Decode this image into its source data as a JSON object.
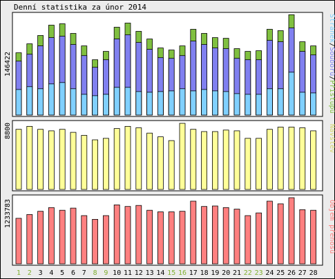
{
  "title": "Denní statistika za únor 2014",
  "colors": {
    "background": "#ececec",
    "panel": "#ffffff",
    "hits": "#80c040",
    "files": "#8080f0",
    "pages": "#80d0ff",
    "visits": "#ffff99",
    "kbytes": "#ff8080",
    "weekend_label": "#80b030",
    "weekday_label": "#000000"
  },
  "chart_data": [
    {
      "type": "bar",
      "panel": "top",
      "ymax_label": "146422",
      "ymax": 146422,
      "legend": [
        "Stránek",
        "Souborů",
        "Přístupů"
      ],
      "x": [
        "1",
        "2",
        "3",
        "4",
        "5",
        "6",
        "7",
        "8",
        "9",
        "10",
        "11",
        "12",
        "13",
        "14",
        "15",
        "16",
        "17",
        "18",
        "19",
        "20",
        "21",
        "22",
        "23",
        "24",
        "25",
        "26",
        "27",
        "28"
      ],
      "weekend_days": [
        "1",
        "2",
        "8",
        "9",
        "15",
        "16",
        "22",
        "23"
      ],
      "series": [
        {
          "name": "Přístupů",
          "values": [
            90000,
            103000,
            115000,
            130000,
            132000,
            118000,
            100000,
            80000,
            92000,
            127000,
            133000,
            121000,
            110000,
            97000,
            94000,
            100000,
            124000,
            118000,
            112000,
            111000,
            96000,
            92000,
            93000,
            124000,
            122000,
            145000,
            106000,
            100000
          ]
        },
        {
          "name": "Souborů",
          "values": [
            78000,
            88000,
            100000,
            112000,
            114000,
            102000,
            86000,
            69000,
            80000,
            110000,
            116000,
            105000,
            95000,
            83000,
            82000,
            86000,
            107000,
            102000,
            97000,
            96000,
            82000,
            80000,
            80000,
            108000,
            106000,
            126000,
            92000,
            87000
          ]
        },
        {
          "name": "Stránek",
          "values": [
            37000,
            41000,
            38000,
            45000,
            47000,
            38000,
            30000,
            28000,
            30000,
            40000,
            40000,
            34000,
            33000,
            34000,
            35000,
            38000,
            35000,
            37000,
            35000,
            34000,
            31000,
            30000,
            30000,
            38000,
            38000,
            62000,
            33000,
            32000
          ]
        }
      ]
    },
    {
      "type": "bar",
      "panel": "middle",
      "ymax_label": "8800",
      "ymax": 8800,
      "legend": [
        "Návštěv"
      ],
      "x": [
        "1",
        "2",
        "3",
        "4",
        "5",
        "6",
        "7",
        "8",
        "9",
        "10",
        "11",
        "12",
        "13",
        "14",
        "15",
        "16",
        "17",
        "18",
        "19",
        "20",
        "21",
        "22",
        "23",
        "24",
        "25",
        "26",
        "27",
        "28"
      ],
      "series": [
        {
          "name": "Návštěv",
          "values": [
            8000,
            8400,
            8000,
            7800,
            8000,
            7600,
            7200,
            6600,
            6800,
            8100,
            8400,
            8200,
            7500,
            7000,
            6500,
            8800,
            8000,
            7700,
            7700,
            7900,
            7800,
            6800,
            6800,
            8000,
            8300,
            8300,
            8200,
            7800
          ]
        }
      ]
    },
    {
      "type": "bar",
      "panel": "bottom",
      "ymax_label": "1233783",
      "ymax": 1233783,
      "legend": [
        "Objem přenosů"
      ],
      "x": [
        "1",
        "2",
        "3",
        "4",
        "5",
        "6",
        "7",
        "8",
        "9",
        "10",
        "11",
        "12",
        "13",
        "14",
        "15",
        "16",
        "17",
        "18",
        "19",
        "20",
        "21",
        "22",
        "23",
        "24",
        "25",
        "26",
        "27",
        "28"
      ],
      "series": [
        {
          "name": "Objem přenosů",
          "values": [
            850000,
            920000,
            980000,
            1050000,
            1000000,
            1040000,
            900000,
            830000,
            900000,
            1100000,
            1070000,
            1090000,
            1000000,
            970000,
            970000,
            980000,
            1170000,
            1070000,
            1080000,
            1050000,
            1020000,
            900000,
            950000,
            1170000,
            1120000,
            1233783,
            1010000,
            1000000
          ]
        }
      ]
    }
  ]
}
